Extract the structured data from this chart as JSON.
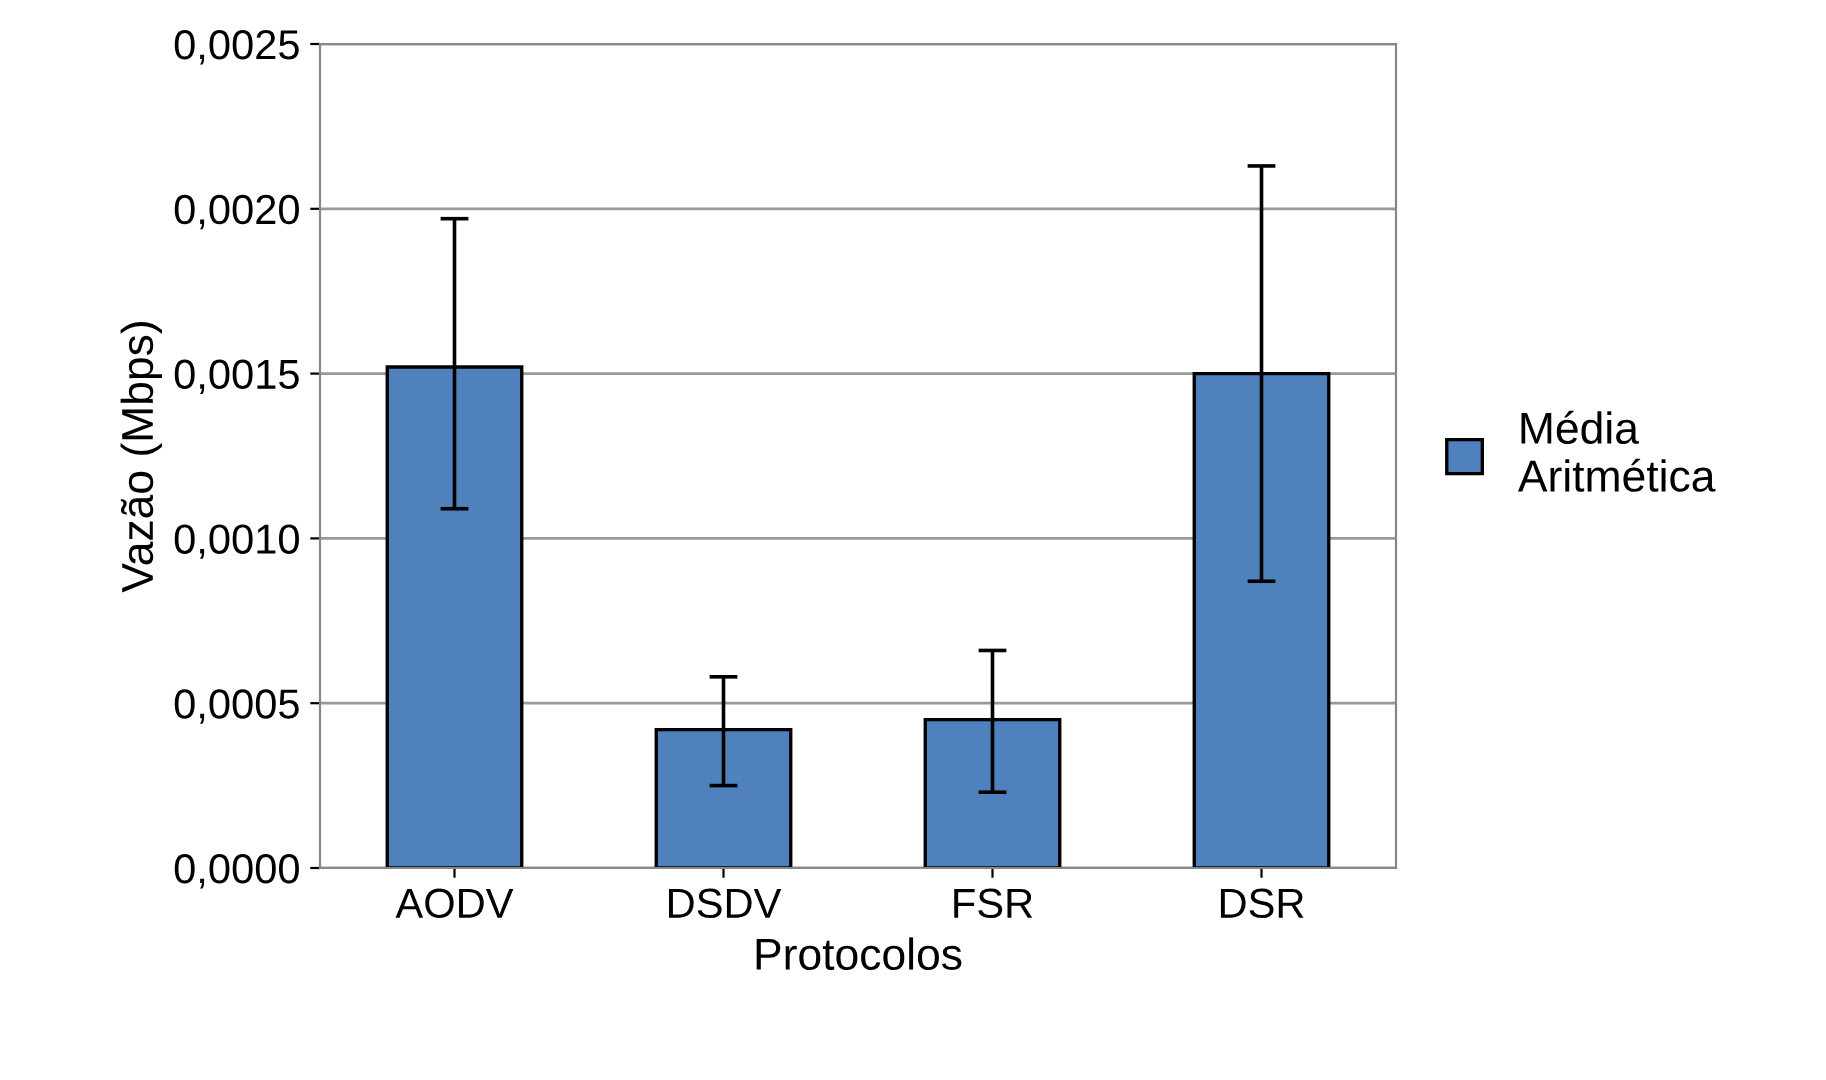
{
  "chart_data": {
    "type": "bar",
    "xlabel": "Protocolos",
    "ylabel": "Vazão (Mbps)",
    "categories": [
      "AODV",
      "DSDV",
      "FSR",
      "DSR"
    ],
    "series": [
      {
        "name": "Média\nAritmética",
        "color": "#4f81bd",
        "values": [
          0.00152,
          0.00042,
          0.00045,
          0.0015
        ],
        "errors": [
          [
            0.00109,
            0.00197
          ],
          [
            0.00025,
            0.00058
          ],
          [
            0.00023,
            0.00066
          ],
          [
            0.00087,
            0.00213
          ]
        ]
      }
    ],
    "ylim": [
      0,
      0.0025
    ],
    "yticks": [
      {
        "value": 0,
        "label": "0,0000"
      },
      {
        "value": 0.0005,
        "label": "0,0005"
      },
      {
        "value": 0.001,
        "label": "0,0010"
      },
      {
        "value": 0.0015,
        "label": "0,0015"
      },
      {
        "value": 0.002,
        "label": "0,0020"
      },
      {
        "value": 0.0025,
        "label": "0,0025"
      }
    ],
    "grid": "y",
    "legend": "right"
  }
}
